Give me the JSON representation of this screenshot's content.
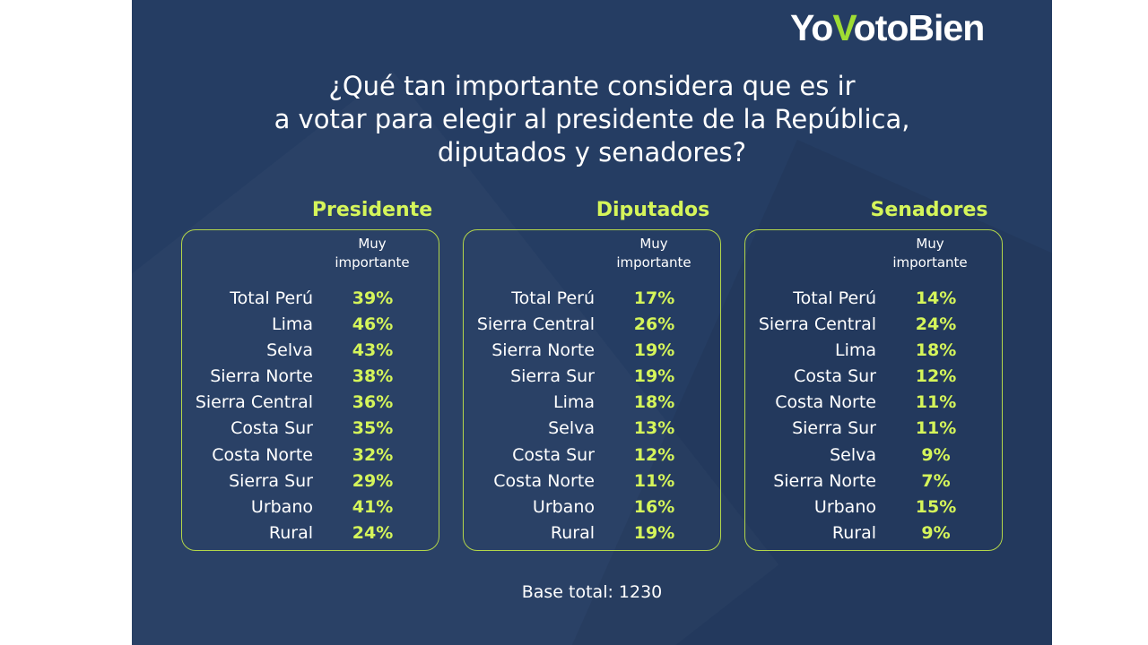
{
  "brand": {
    "logo_text_1": "Yo",
    "logo_check": "V",
    "logo_text_2": "otoBien"
  },
  "colors": {
    "background": "#253d63",
    "accent": "#d5f55a",
    "border": "#b3d64a",
    "text": "#ffffff"
  },
  "title_lines": [
    "¿Qué tan importante considera que es ir",
    "a votar para elegir al presidente de la República,",
    "diputados y senadores?"
  ],
  "footer": {
    "base": "Base total: 1230"
  },
  "chart_data": [
    {
      "type": "table",
      "title": "Presidente",
      "column_header": [
        "Muy",
        "importante"
      ],
      "categories": [
        "Total Perú",
        "Lima",
        "Selva",
        "Sierra Norte",
        "Sierra Central",
        "Costa Sur",
        "Costa Norte",
        "Sierra Sur",
        "Urbano",
        "Rural"
      ],
      "values": [
        "39%",
        "46%",
        "43%",
        "38%",
        "36%",
        "35%",
        "32%",
        "29%",
        "41%",
        "24%"
      ]
    },
    {
      "type": "table",
      "title": "Diputados",
      "column_header": [
        "Muy",
        "importante"
      ],
      "categories": [
        "Total Perú",
        "Sierra Central",
        "Sierra Norte",
        "Sierra Sur",
        "Lima",
        "Selva",
        "Costa Sur",
        "Costa Norte",
        "Urbano",
        "Rural"
      ],
      "values": [
        "17%",
        "26%",
        "19%",
        "19%",
        "18%",
        "13%",
        "12%",
        "11%",
        "16%",
        "19%"
      ]
    },
    {
      "type": "table",
      "title": "Senadores",
      "column_header": [
        "Muy",
        "importante"
      ],
      "categories": [
        "Total Perú",
        "Sierra Central",
        "Lima",
        "Costa Sur",
        "Costa Norte",
        "Sierra Sur",
        "Selva",
        "Sierra Norte",
        "Urbano",
        "Rural"
      ],
      "values": [
        "14%",
        "24%",
        "18%",
        "12%",
        "11%",
        "11%",
        "9%",
        "7%",
        "15%",
        "9%"
      ]
    }
  ]
}
